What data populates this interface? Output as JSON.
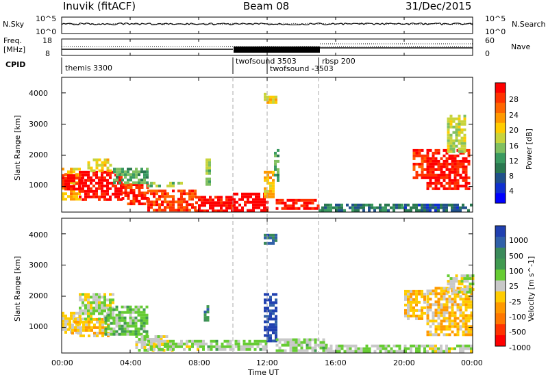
{
  "header": {
    "left_title": "Inuvik (fitACF)",
    "center_title": "Beam 08",
    "right_title": "31/Dec/2015"
  },
  "top_panel": {
    "left_label": "N.Sky",
    "left_top_tick": "10^5",
    "left_bottom_tick": "10^0",
    "right_label": "N.Search",
    "right_top_tick": "10^5",
    "right_bottom_tick": "10^0"
  },
  "freq_panel": {
    "left_label_line1": "Freq.",
    "left_label_line2": "[MHz]",
    "left_top_tick": "18",
    "left_bottom_tick": "8",
    "right_label": "Nave",
    "right_top_tick": "60",
    "right_bottom_tick": "0"
  },
  "cpid": {
    "label": "CPID",
    "segments": [
      {
        "name": "themis 3300",
        "start_h": 0
      },
      {
        "name": "twofsound 3503",
        "start_h": 10
      },
      {
        "name": "twofsound -3503",
        "start_h": 12
      },
      {
        "name": "rbsp 200",
        "start_h": 15
      }
    ]
  },
  "power_panel": {
    "ylabel": "Slant Range [km]",
    "yticks": [
      "1000",
      "2000",
      "3000",
      "4000"
    ],
    "colorbar_label": "Power [dB]",
    "colorbar_ticks": [
      "28",
      "24",
      "20",
      "16",
      "12",
      "8",
      "4"
    ],
    "colorbar_colors": [
      "#ff0000",
      "#ff3300",
      "#ff6600",
      "#ff9900",
      "#ffcc00",
      "#c8d43c",
      "#80c060",
      "#3a9a60",
      "#2a7850",
      "#20508a",
      "#1030d0",
      "#0000ff"
    ]
  },
  "velocity_panel": {
    "ylabel": "Slant Range [km]",
    "yticks": [
      "1000",
      "2000",
      "3000",
      "4000"
    ],
    "colorbar_label": "Velocity [m s^-1]",
    "colorbar_ticks": [
      "1000",
      "500",
      "100",
      "25",
      "-25",
      "-100",
      "-500",
      "-1000"
    ],
    "colorbar_colors": [
      "#2040b0",
      "#3060a8",
      "#3a8a5a",
      "#409a50",
      "#66cc33",
      "#c8c8c8",
      "#ffcc00",
      "#ff9900",
      "#ff7700",
      "#ff3300",
      "#ff0000"
    ]
  },
  "x_axis": {
    "label": "Time UT",
    "ticks": [
      "00:00",
      "04:00",
      "08:00",
      "12:00",
      "16:00",
      "20:00",
      "00:00"
    ]
  },
  "chart_data": [
    {
      "type": "heatmap",
      "name": "Power",
      "x_unit": "hours UT",
      "y_unit": "km",
      "xlim": [
        0,
        24
      ],
      "ylim": [
        180,
        4500
      ],
      "clim": [
        0,
        30
      ],
      "regions": [
        {
          "x0": 0.0,
          "x1": 1.0,
          "y0": 600,
          "y1": 1600,
          "value": 20
        },
        {
          "x0": 0.0,
          "x1": 1.2,
          "y0": 900,
          "y1": 1400,
          "value": 28
        },
        {
          "x0": 1.0,
          "x1": 3.5,
          "y0": 600,
          "y1": 1500,
          "value": 29
        },
        {
          "x0": 1.5,
          "x1": 2.8,
          "y0": 1500,
          "y1": 1900,
          "value": 18
        },
        {
          "x0": 3.5,
          "x1": 5.0,
          "y0": 400,
          "y1": 1100,
          "value": 27
        },
        {
          "x0": 3.0,
          "x1": 5.0,
          "y0": 1100,
          "y1": 1600,
          "value": 12
        },
        {
          "x0": 5.0,
          "x1": 7.8,
          "y0": 250,
          "y1": 900,
          "value": 26
        },
        {
          "x0": 5.0,
          "x1": 7.0,
          "y0": 1000,
          "y1": 1150,
          "value": 14
        },
        {
          "x0": 7.8,
          "x1": 10.0,
          "y0": 250,
          "y1": 700,
          "value": 29
        },
        {
          "x0": 10.0,
          "x1": 12.0,
          "y0": 250,
          "y1": 800,
          "value": 30
        },
        {
          "x0": 11.8,
          "x1": 12.4,
          "y0": 700,
          "y1": 1500,
          "value": 20
        },
        {
          "x0": 11.8,
          "x1": 12.5,
          "y0": 3700,
          "y1": 4000,
          "value": 18
        },
        {
          "x0": 12.5,
          "x1": 15.0,
          "y0": 250,
          "y1": 600,
          "value": 28
        },
        {
          "x0": 15.0,
          "x1": 20.0,
          "y0": 250,
          "y1": 450,
          "value": 9
        },
        {
          "x0": 8.4,
          "x1": 8.7,
          "y0": 1100,
          "y1": 1900,
          "value": 14
        },
        {
          "x0": 12.4,
          "x1": 12.7,
          "y0": 1200,
          "y1": 2200,
          "value": 12
        },
        {
          "x0": 20.5,
          "x1": 21.2,
          "y0": 1300,
          "y1": 2200,
          "value": 26
        },
        {
          "x0": 21.3,
          "x1": 23.8,
          "y0": 900,
          "y1": 2200,
          "value": 28
        },
        {
          "x0": 22.5,
          "x1": 23.5,
          "y0": 2100,
          "y1": 3300,
          "value": 16
        },
        {
          "x0": 20.0,
          "x1": 24.0,
          "y0": 250,
          "y1": 450,
          "value": 7
        }
      ]
    },
    {
      "type": "heatmap",
      "name": "Velocity",
      "x_unit": "hours UT",
      "y_unit": "km",
      "xlim": [
        0,
        24
      ],
      "ylim": [
        180,
        4500
      ],
      "clim": [
        -1000,
        1000
      ],
      "regions": [
        {
          "x0": 0.0,
          "x1": 1.0,
          "y0": 800,
          "y1": 1500,
          "value": -100
        },
        {
          "x0": 0.4,
          "x1": 2.7,
          "y0": 700,
          "y1": 1300,
          "value": -200
        },
        {
          "x0": 1.0,
          "x1": 3.0,
          "y0": 1300,
          "y1": 2100,
          "value": 40
        },
        {
          "x0": 2.5,
          "x1": 5.0,
          "y0": 800,
          "y1": 1700,
          "value": 200
        },
        {
          "x0": 4.3,
          "x1": 6.5,
          "y0": 300,
          "y1": 750,
          "value": 0
        },
        {
          "x0": 5.0,
          "x1": 8.5,
          "y0": 250,
          "y1": 600,
          "value": 60
        },
        {
          "x0": 8.5,
          "x1": 12.0,
          "y0": 250,
          "y1": 600,
          "value": 120
        },
        {
          "x0": 8.3,
          "x1": 8.6,
          "y0": 1200,
          "y1": 1800,
          "value": 500
        },
        {
          "x0": 11.8,
          "x1": 12.5,
          "y0": 600,
          "y1": 2100,
          "value": 900
        },
        {
          "x0": 11.8,
          "x1": 12.5,
          "y0": 3700,
          "y1": 4000,
          "value": 700
        },
        {
          "x0": 12.5,
          "x1": 15.5,
          "y0": 250,
          "y1": 650,
          "value": 100
        },
        {
          "x0": 15.5,
          "x1": 20.0,
          "y0": 250,
          "y1": 450,
          "value": 90
        },
        {
          "x0": 20.0,
          "x1": 21.2,
          "y0": 1300,
          "y1": 2200,
          "value": -200
        },
        {
          "x0": 21.3,
          "x1": 24.0,
          "y0": 800,
          "y1": 2300,
          "value": -200
        },
        {
          "x0": 22.5,
          "x1": 24.0,
          "y0": 2100,
          "y1": 2700,
          "value": 0
        },
        {
          "x0": 20.0,
          "x1": 24.0,
          "y0": 250,
          "y1": 450,
          "value": 60
        }
      ]
    }
  ]
}
